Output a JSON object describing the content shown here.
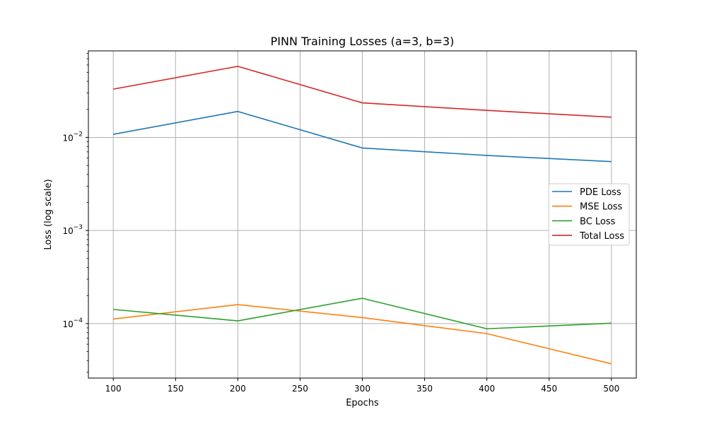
{
  "chart_data": {
    "type": "line",
    "title": "PINN Training Losses (a=3, b=3)",
    "xlabel": "Epochs",
    "ylabel": "Loss (log scale)",
    "yscale": "log",
    "x": [
      100,
      200,
      300,
      400,
      500
    ],
    "xticks": [
      "100",
      "150",
      "200",
      "250",
      "300",
      "350",
      "400",
      "450",
      "500"
    ],
    "yticks": [
      {
        "value": 0.01,
        "base": "10",
        "exp": "−2"
      },
      {
        "value": 0.001,
        "base": "10",
        "exp": "−3"
      },
      {
        "value": 0.0001,
        "base": "10",
        "exp": "−4"
      }
    ],
    "xlim": [
      80,
      520
    ],
    "ylim": [
      2.6e-05,
      0.085
    ],
    "grid": true,
    "legend_position": "center-right",
    "series": [
      {
        "name": "PDE Loss",
        "color": "#1f77b4",
        "values": [
          0.0108,
          0.019,
          0.0077,
          0.0064,
          0.0055
        ]
      },
      {
        "name": "MSE Loss",
        "color": "#ff7f0e",
        "values": [
          0.000112,
          0.00016,
          0.000116,
          7.8e-05,
          3.7e-05
        ]
      },
      {
        "name": "BC Loss",
        "color": "#2ca02c",
        "values": [
          0.000142,
          0.000107,
          0.000187,
          8.8e-05,
          0.000101
        ]
      },
      {
        "name": "Total Loss",
        "color": "#d62728",
        "values": [
          0.033,
          0.058,
          0.0235,
          0.0195,
          0.0165
        ]
      }
    ]
  }
}
